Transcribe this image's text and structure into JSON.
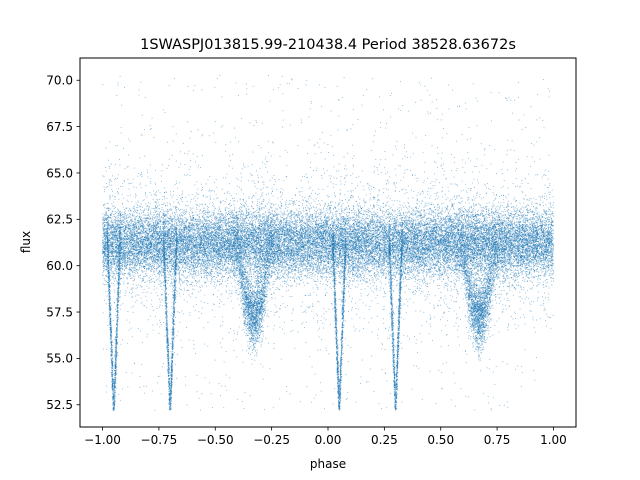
{
  "chart_data": {
    "type": "scatter",
    "title": "1SWASPJ013815.99-210438.4 Period 38528.63672s",
    "xlabel": "phase",
    "ylabel": "flux",
    "xlim": [
      -1.1,
      1.1
    ],
    "ylim": [
      51.3,
      71.2
    ],
    "grid": false,
    "point_color": "#1f77b4",
    "x_ticks": [
      -1.0,
      -0.75,
      -0.5,
      -0.25,
      0.0,
      0.25,
      0.5,
      0.75,
      1.0
    ],
    "x_tick_labels": [
      "−1.00",
      "−0.75",
      "−0.50",
      "−0.25",
      "0.00",
      "0.25",
      "0.50",
      "0.75",
      "1.00"
    ],
    "y_ticks": [
      52.5,
      55.0,
      57.5,
      60.0,
      62.5,
      65.0,
      67.5,
      70.0
    ],
    "y_tick_labels": [
      "52.5",
      "55.0",
      "57.5",
      "60.0",
      "62.5",
      "65.0",
      "67.5",
      "70.0"
    ],
    "phase_range": [
      -1.0,
      1.0
    ],
    "flux_range": [
      52.2,
      70.3
    ],
    "baseline_flux": 61.2,
    "baseline_scatter_sigma": 0.9,
    "primary_eclipses": [
      {
        "phase": -0.95,
        "min_flux": 52.2
      },
      {
        "phase": -0.7,
        "min_flux": 52.2
      },
      {
        "phase": 0.05,
        "min_flux": 52.2
      },
      {
        "phase": 0.3,
        "min_flux": 52.2
      }
    ],
    "secondary_eclipses": [
      {
        "phase": -0.33,
        "min_flux": 57.3
      },
      {
        "phase": 0.67,
        "min_flux": 57.3
      }
    ]
  }
}
